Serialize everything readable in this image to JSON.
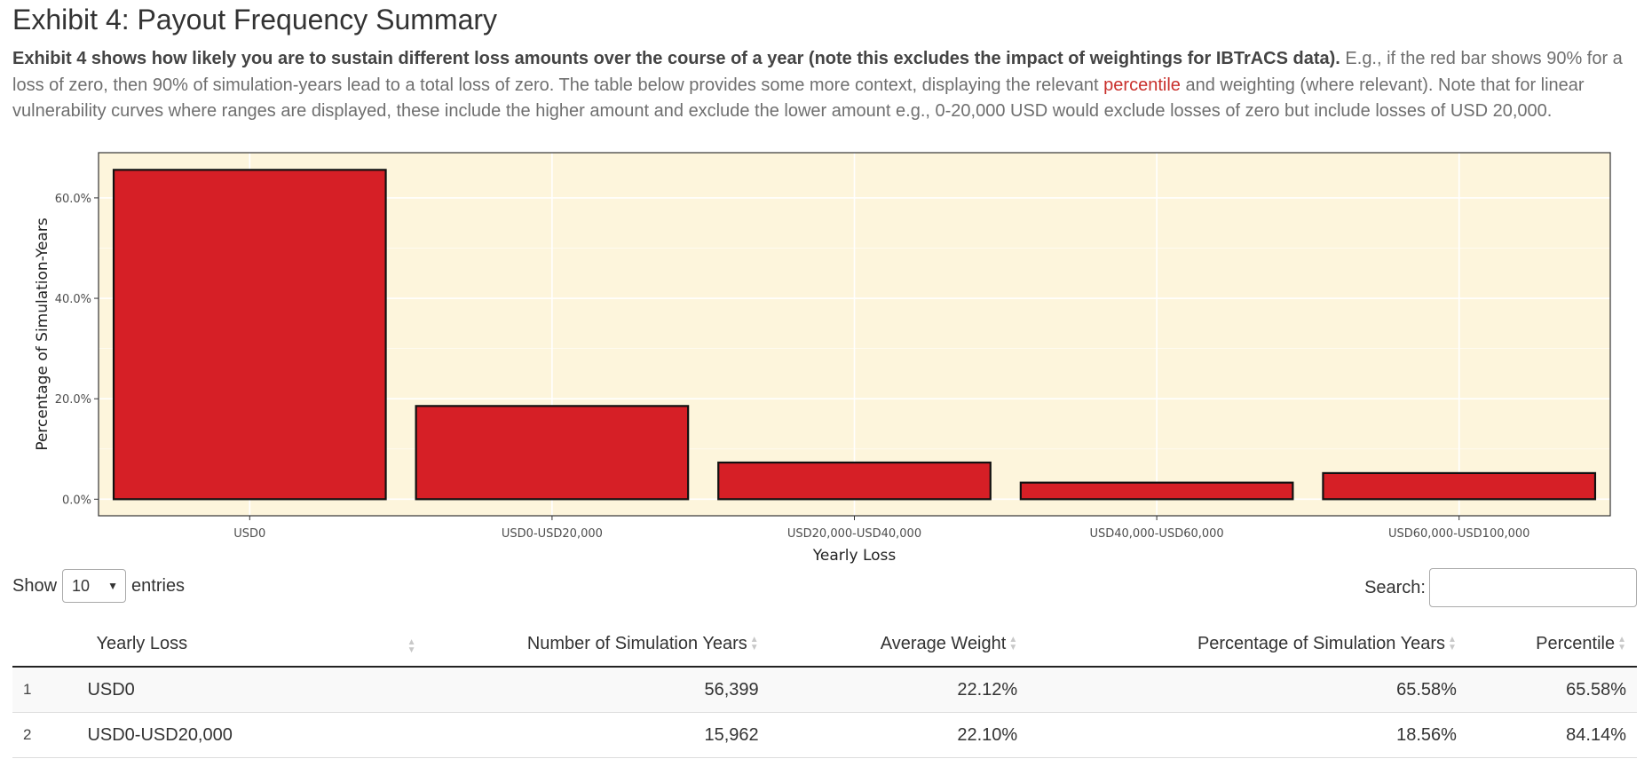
{
  "header": {
    "title": "Exhibit 4: Payout Frequency Summary",
    "desc_bold": "Exhibit 4 shows how likely you are to sustain different loss amounts over the course of a year (note this excludes the impact of weightings for IBTrACS data).",
    "desc_part1": " E.g., if the red bar shows 90% for a loss of zero, then 90% of simulation-years lead to a total loss of zero. The table below provides some more context, displaying the relevant ",
    "desc_link": "percentile",
    "desc_part2": " and weighting (where relevant). Note that for linear vulnerability curves where ranges are displayed, these include the higher amount and exclude the lower amount e.g., 0-20,000 USD would exclude losses of zero but include losses of USD 20,000."
  },
  "chart_data": {
    "type": "bar",
    "categories": [
      "USD0",
      "USD0-USD20,000",
      "USD20,000-USD40,000",
      "USD40,000-USD60,000",
      "USD60,000-USD100,000"
    ],
    "values": [
      65.58,
      18.56,
      7.3,
      3.3,
      5.2
    ],
    "xlabel": "Yearly Loss",
    "ylabel": "Percentage of Simulation-Years",
    "ylim": [
      -3.3,
      69
    ],
    "yticks": [
      0,
      20,
      40,
      60
    ],
    "ytick_labels": [
      "0.0%",
      "20.0%",
      "40.0%",
      "60.0%"
    ],
    "grid": true,
    "colors": {
      "bar": "#d61f26",
      "panel": "#fdf5dc",
      "grid": "#ffffff",
      "outline": "#111111"
    }
  },
  "controls": {
    "show_label": "Show",
    "length_value": "10",
    "entries_label": "entries",
    "search_label": "Search:",
    "search_value": ""
  },
  "table": {
    "columns": [
      "",
      "Yearly Loss",
      "Number of Simulation Years",
      "Average Weight",
      "Percentage of Simulation Years",
      "Percentile"
    ],
    "rows": [
      [
        "1",
        "USD0",
        "56,399",
        "22.12%",
        "65.58%",
        "65.58%"
      ],
      [
        "2",
        "USD0-USD20,000",
        "15,962",
        "22.10%",
        "18.56%",
        "84.14%"
      ]
    ]
  }
}
